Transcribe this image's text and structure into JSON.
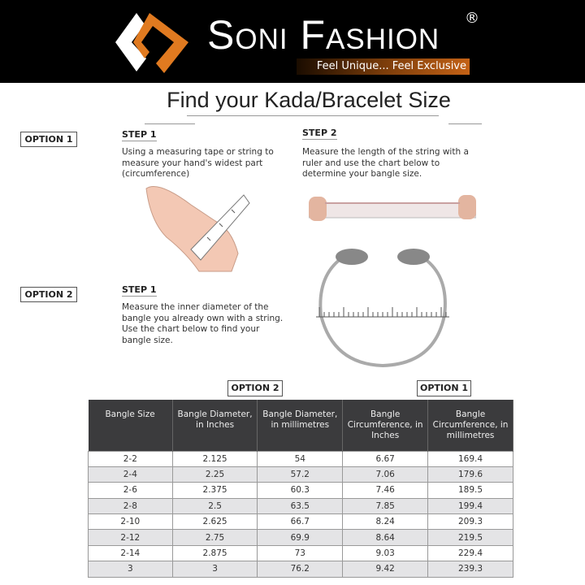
{
  "brand": {
    "name": "Soni Fashion",
    "registered": "®",
    "tagline": "Feel Unique... Feel Exclusive",
    "colors": {
      "orange": "#e07a20",
      "header_bg": "#000000"
    }
  },
  "title": "Find your Kada/Bracelet Size",
  "option1": {
    "label": "OPTION 1",
    "step1": {
      "label": "STEP 1",
      "text": "Using a measuring tape or string to measure your hand's widest part (circumference)"
    },
    "step2": {
      "label": "STEP 2",
      "text": "Measure the length of the string with a ruler and use the chart below to determine your bangle size."
    }
  },
  "option2": {
    "label": "OPTION 2",
    "step1": {
      "label": "STEP 1",
      "text1": "Measure the inner diameter of the bangle you already own with a string.",
      "text2": "Use the chart below to find your bangle size."
    }
  },
  "table": {
    "option2_label": "OPTION 2",
    "option1_label": "OPTION 1",
    "headers": [
      "Bangle Size",
      "Bangle Diameter, in Inches",
      "Bangle Diameter, in millimetres",
      "Bangle Circumference, in Inches",
      "Bangle Circumference, in millimetres"
    ],
    "rows": [
      [
        "2-2",
        "2.125",
        "54",
        "6.67",
        "169.4"
      ],
      [
        "2-4",
        "2.25",
        "57.2",
        "7.06",
        "179.6"
      ],
      [
        "2-6",
        "2.375",
        "60.3",
        "7.46",
        "189.5"
      ],
      [
        "2-8",
        "2.5",
        "63.5",
        "7.85",
        "199.4"
      ],
      [
        "2-10",
        "2.625",
        "66.7",
        "8.24",
        "209.3"
      ],
      [
        "2-12",
        "2.75",
        "69.9",
        "8.64",
        "219.5"
      ],
      [
        "2-14",
        "2.875",
        "73",
        "9.03",
        "229.4"
      ],
      [
        "3",
        "3",
        "76.2",
        "9.42",
        "239.3"
      ]
    ]
  }
}
